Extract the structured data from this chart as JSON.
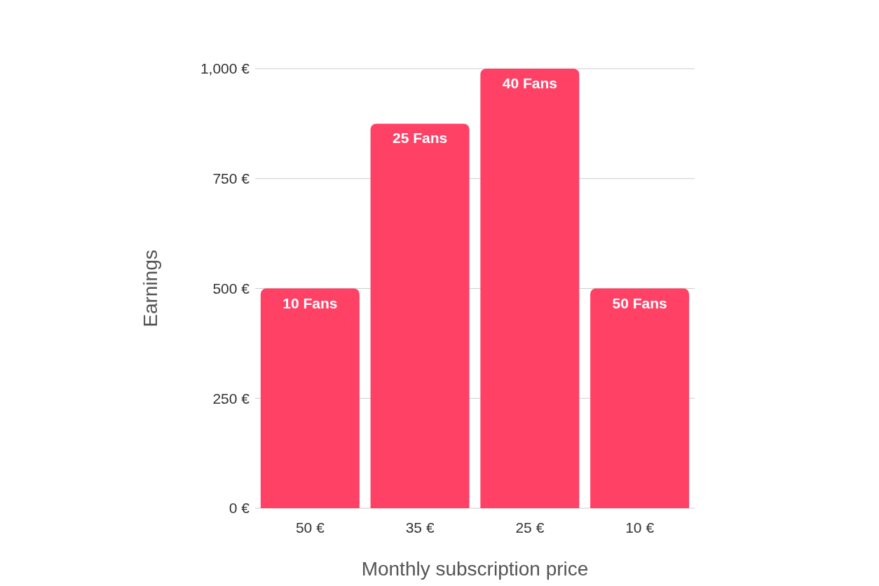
{
  "chart_data": {
    "type": "bar",
    "xlabel": "Monthly subscription price",
    "ylabel": "Earnings",
    "categories": [
      "50 €",
      "35 €",
      "25 €",
      "10 €"
    ],
    "values": [
      500,
      875,
      1000,
      500
    ],
    "color": "#ff4165",
    "annotations": [
      {
        "text": "10 Fans",
        "x": "50 €",
        "y": 500
      },
      {
        "text": "25 Fans",
        "x": "35 €",
        "y": 875
      },
      {
        "text": "40 Fans",
        "x": "25 €",
        "y": 1000
      },
      {
        "text": "50 Fans",
        "x": "10 €",
        "y": 500
      }
    ],
    "ylim": [
      0,
      1000
    ],
    "yticks": [
      {
        "value": 0,
        "label": "0 €"
      },
      {
        "value": 250,
        "label": "250 €"
      },
      {
        "value": 500,
        "label": "500 €"
      },
      {
        "value": 750,
        "label": "750 €"
      },
      {
        "value": 1000,
        "label": "1,000 €"
      }
    ],
    "grid": "y",
    "legend": false
  }
}
